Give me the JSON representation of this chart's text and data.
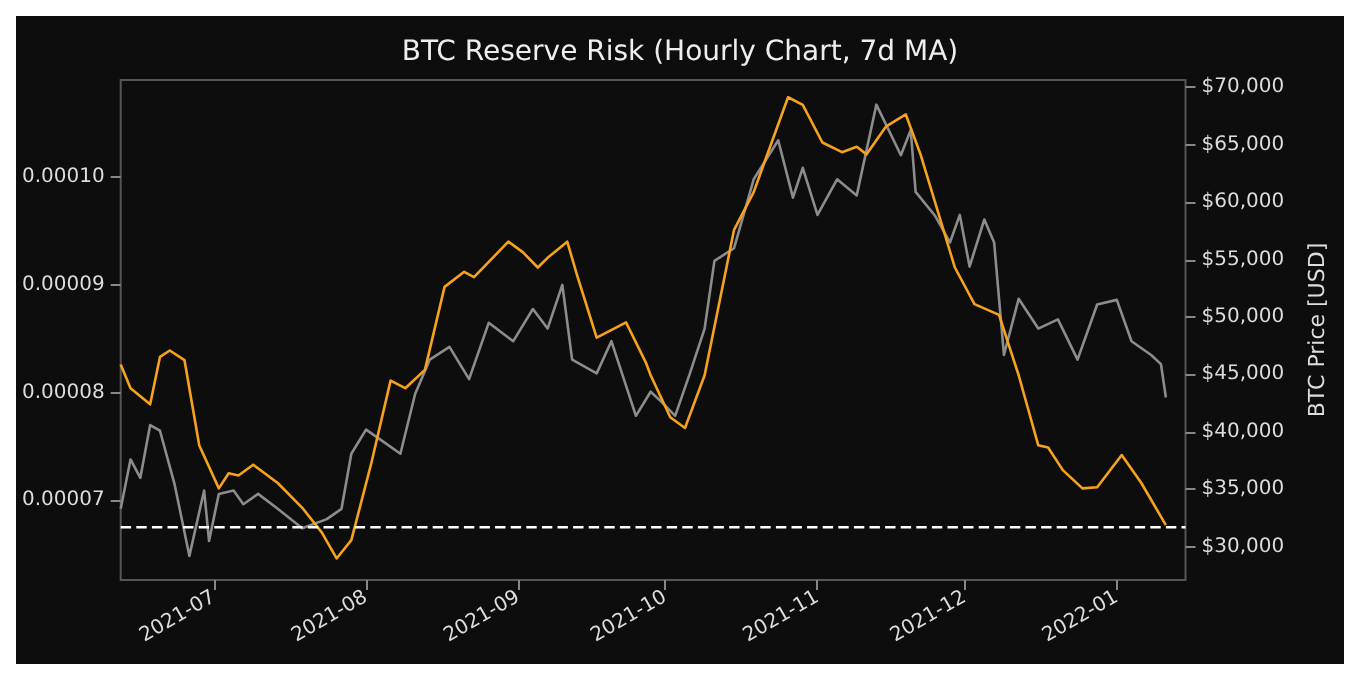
{
  "chart_data": {
    "type": "line",
    "title": "BTC Reserve Risk (Hourly Chart, 7d MA)",
    "y2label": "BTC Price [USD]",
    "xlim": [
      "2021-06-12",
      "2022-01-15"
    ],
    "xticks": [
      "2021-07",
      "2021-08",
      "2021-09",
      "2021-10",
      "2021-11",
      "2021-12",
      "2022-01"
    ],
    "ylim": [
      6.26e-05,
      0.000109
    ],
    "yticks": [
      {
        "value": 7e-05,
        "label": "0.00007"
      },
      {
        "value": 8e-05,
        "label": "0.00008"
      },
      {
        "value": 9e-05,
        "label": "0.00009"
      },
      {
        "value": 0.0001,
        "label": "0.00010"
      }
    ],
    "y2lim": [
      27100,
      70650
    ],
    "y2ticks": [
      {
        "value": 30000,
        "label": "$30,000"
      },
      {
        "value": 35000,
        "label": "$35,000"
      },
      {
        "value": 40000,
        "label": "$40,000"
      },
      {
        "value": 45000,
        "label": "$45,000"
      },
      {
        "value": 50000,
        "label": "$50,000"
      },
      {
        "value": 55000,
        "label": "$55,000"
      },
      {
        "value": 60000,
        "label": "$60,000"
      },
      {
        "value": 65000,
        "label": "$65,000"
      },
      {
        "value": 70000,
        "label": "$70,000"
      }
    ],
    "grid": false,
    "marker": "none",
    "series": [
      {
        "color": "#8c8c8c",
        "axis": "y2",
        "x": [
          "2021-06-12",
          "2021-06-14",
          "2021-06-16",
          "2021-06-18",
          "2021-06-20",
          "2021-06-23",
          "2021-06-26",
          "2021-06-29",
          "2021-06-30",
          "2021-07-02",
          "2021-07-05",
          "2021-07-07",
          "2021-07-10",
          "2021-07-14",
          "2021-07-19",
          "2021-07-24",
          "2021-07-27",
          "2021-07-29",
          "2021-08-01",
          "2021-08-04",
          "2021-08-08",
          "2021-08-11",
          "2021-08-14",
          "2021-08-18",
          "2021-08-22",
          "2021-08-26",
          "2021-08-31",
          "2021-09-04",
          "2021-09-07",
          "2021-09-10",
          "2021-09-12",
          "2021-09-17",
          "2021-09-20",
          "2021-09-25",
          "2021-09-28",
          "2021-09-30",
          "2021-10-03",
          "2021-10-06",
          "2021-10-09",
          "2021-10-11",
          "2021-10-15",
          "2021-10-19",
          "2021-10-24",
          "2021-10-27",
          "2021-10-29",
          "2021-11-01",
          "2021-11-05",
          "2021-11-09",
          "2021-11-13",
          "2021-11-18",
          "2021-11-20",
          "2021-11-21",
          "2021-11-25",
          "2021-11-28",
          "2021-11-30",
          "2021-12-02",
          "2021-12-05",
          "2021-12-07",
          "2021-12-09",
          "2021-12-12",
          "2021-12-16",
          "2021-12-20",
          "2021-12-24",
          "2021-12-28",
          "2022-01-01",
          "2022-01-04",
          "2022-01-08",
          "2022-01-10",
          "2022-01-11"
        ],
        "values": [
          33300,
          37600,
          36000,
          40600,
          40100,
          35400,
          29200,
          34900,
          30500,
          34600,
          34900,
          33700,
          34600,
          33300,
          31600,
          32400,
          33300,
          38100,
          40200,
          39300,
          38100,
          43300,
          46300,
          47400,
          44600,
          49500,
          47900,
          50700,
          49000,
          52800,
          46300,
          45100,
          47900,
          41400,
          43500,
          42700,
          41400,
          45100,
          49000,
          54900,
          56000,
          62000,
          65400,
          60400,
          63000,
          58900,
          62000,
          60600,
          68500,
          64100,
          66300,
          60900,
          58800,
          56500,
          58900,
          54400,
          58500,
          56500,
          46700,
          51600,
          49000,
          49800,
          46300,
          51100,
          51500,
          47900,
          46700,
          45900,
          43000
        ]
      },
      {
        "color": "#f7a21b",
        "axis": "y",
        "x": [
          "2021-06-12",
          "2021-06-14",
          "2021-06-18",
          "2021-06-20",
          "2021-06-22",
          "2021-06-25",
          "2021-06-28",
          "2021-07-02",
          "2021-07-04",
          "2021-07-06",
          "2021-07-09",
          "2021-07-14",
          "2021-07-19",
          "2021-07-23",
          "2021-07-26",
          "2021-07-29",
          "2021-08-02",
          "2021-08-06",
          "2021-08-09",
          "2021-08-13",
          "2021-08-17",
          "2021-08-21",
          "2021-08-23",
          "2021-08-30",
          "2021-09-02",
          "2021-09-05",
          "2021-09-07",
          "2021-09-11",
          "2021-09-13",
          "2021-09-17",
          "2021-09-23",
          "2021-09-27",
          "2021-09-28",
          "2021-10-02",
          "2021-10-05",
          "2021-10-09",
          "2021-10-15",
          "2021-10-19",
          "2021-10-26",
          "2021-10-29",
          "2021-11-02",
          "2021-11-06",
          "2021-11-09",
          "2021-11-11",
          "2021-11-15",
          "2021-11-19",
          "2021-11-22",
          "2021-11-29",
          "2021-12-03",
          "2021-12-08",
          "2021-12-12",
          "2021-12-16",
          "2021-12-18",
          "2021-12-21",
          "2021-12-25",
          "2021-12-28",
          "2022-01-02",
          "2022-01-06",
          "2022-01-11"
        ],
        "values": [
          8.26e-05,
          8.04e-05,
          7.89e-05,
          8.33e-05,
          8.39e-05,
          8.3e-05,
          7.51e-05,
          7.11e-05,
          7.25e-05,
          7.23e-05,
          7.33e-05,
          7.16e-05,
          6.93e-05,
          6.7e-05,
          6.46e-05,
          6.63e-05,
          7.33e-05,
          8.11e-05,
          8.04e-05,
          8.21e-05,
          8.98e-05,
          9.12e-05,
          9.07e-05,
          9.4e-05,
          9.3e-05,
          9.16e-05,
          9.25e-05,
          9.4e-05,
          9.09e-05,
          8.51e-05,
          8.65e-05,
          8.28e-05,
          8.16e-05,
          7.77e-05,
          7.67e-05,
          8.16e-05,
          9.51e-05,
          9.86e-05,
          0.0001074,
          0.0001067,
          0.0001032,
          0.0001023,
          0.0001028,
          0.0001021,
          0.0001047,
          0.0001058,
          0.0001021,
          9.16e-05,
          8.82e-05,
          8.72e-05,
          8.16e-05,
          7.51e-05,
          7.49e-05,
          7.28e-05,
          7.11e-05,
          7.12e-05,
          7.42e-05,
          7.16e-05,
          6.77e-05
        ]
      }
    ],
    "ref_lines": [
      {
        "axis": "y",
        "value": 6.75e-05,
        "color": "#ffffff",
        "line_style": "dashed"
      }
    ]
  }
}
